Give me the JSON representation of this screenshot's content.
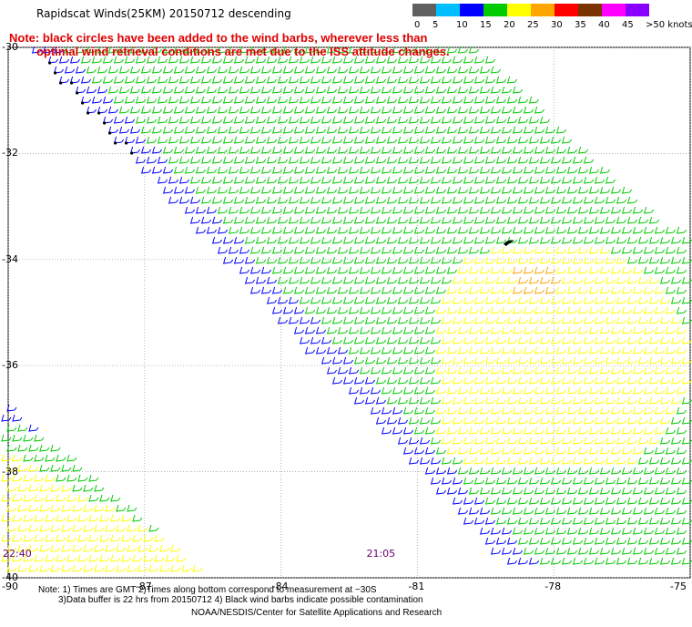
{
  "title": "Rapidscat Winds(25KM) 20150712 descending",
  "note": {
    "line1": "Note: black circles have been added to the wind barbs, wherever less than",
    "line2": "optimal wind retrieval conditions are met due to the ISS attitude changes."
  },
  "legend": {
    "unit": "knots",
    "labels": [
      "0",
      "5",
      "10",
      "15",
      "20",
      "25",
      "30",
      "35",
      "40",
      "45",
      ">50 knots"
    ],
    "colors": [
      "#606060",
      "#00bfff",
      "#0000ff",
      "#00cc00",
      "#ffff00",
      "#ffa500",
      "#ff0000",
      "#7a3300",
      "#ff00ff",
      "#8a00ff"
    ]
  },
  "map": {
    "lat_ticks": [
      "-30",
      "-32",
      "-34",
      "-36",
      "-38",
      "-40"
    ],
    "lon_ticks": [
      "-90",
      "-87",
      "-84",
      "-81",
      "-78",
      "-75"
    ],
    "lat_range": [
      -40,
      -30
    ],
    "lon_range": [
      -90,
      -75
    ],
    "grid": true,
    "pass_times": [
      {
        "label": "22:40",
        "lon": -90
      },
      {
        "label": "21:05",
        "lon": -82
      }
    ]
  },
  "footer": {
    "line1": "Note: 1) Times are GMT 2)Times along bottom correspond to measurement at ~30S",
    "line2": "3)Data buffer is 22 hrs from 20150712 4) Black wind barbs indicate possible contamination",
    "line3": "NOAA/NESDIS/Center for Satellite Applications and Research"
  }
}
